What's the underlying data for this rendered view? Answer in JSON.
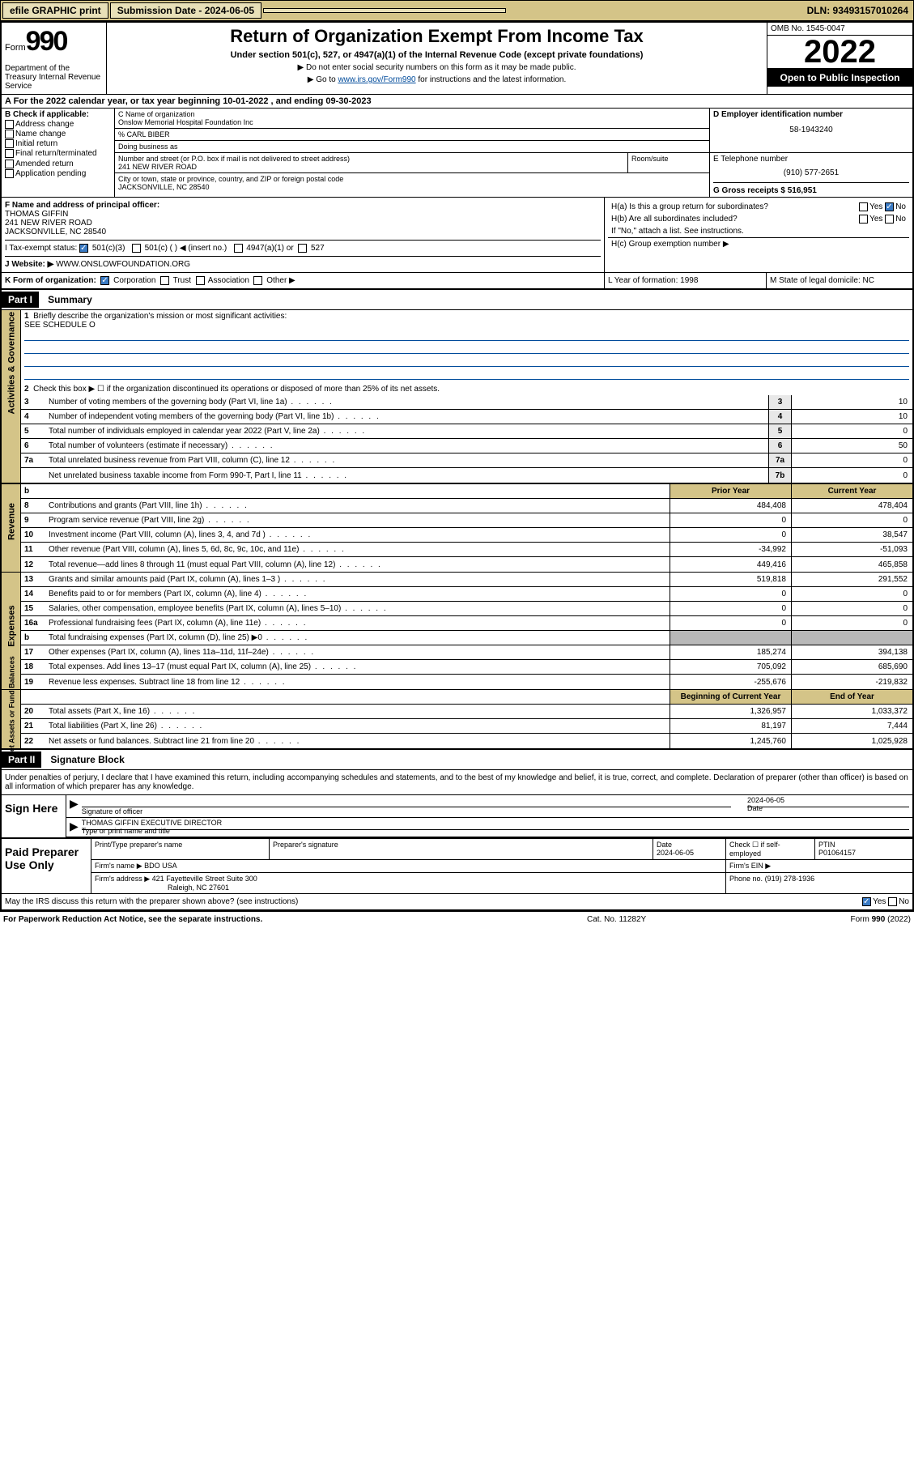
{
  "topbar": {
    "efile": "efile GRAPHIC print",
    "sub_label": "Submission Date - 2024-06-05",
    "dln": "DLN: 93493157010264"
  },
  "header": {
    "form_word": "Form",
    "form_num": "990",
    "dept": "Department of the Treasury Internal Revenue Service",
    "title": "Return of Organization Exempt From Income Tax",
    "sub": "Under section 501(c), 527, or 4947(a)(1) of the Internal Revenue Code (except private foundations)",
    "note1": "▶ Do not enter social security numbers on this form as it may be made public.",
    "note2_pre": "▶ Go to ",
    "note2_link": "www.irs.gov/Form990",
    "note2_post": " for instructions and the latest information.",
    "omb": "OMB No. 1545-0047",
    "year": "2022",
    "inspection": "Open to Public Inspection"
  },
  "rowA": "A For the 2022 calendar year, or tax year beginning 10-01-2022    , and ending 09-30-2023",
  "boxB": {
    "label": "B Check if applicable:",
    "items": [
      "Address change",
      "Name change",
      "Initial return",
      "Final return/terminated",
      "Amended return",
      "Application pending"
    ]
  },
  "boxC": {
    "name_label": "C Name of organization",
    "name": "Onslow Memorial Hospital Foundation Inc",
    "care_label": "% CARL BIBER",
    "dba_label": "Doing business as",
    "street_label": "Number and street (or P.O. box if mail is not delivered to street address)",
    "street": "241 NEW RIVER ROAD",
    "room_label": "Room/suite",
    "city_label": "City or town, state or province, country, and ZIP or foreign postal code",
    "city": "JACKSONVILLE, NC  28540"
  },
  "boxD": {
    "label": "D Employer identification number",
    "ein": "58-1943240"
  },
  "boxE": {
    "label": "E Telephone number",
    "phone": "(910) 577-2651"
  },
  "boxG": {
    "label": "G Gross receipts $ 516,951"
  },
  "boxF": {
    "label": "F Name and address of principal officer:",
    "name": "THOMAS GIFFIN",
    "street": "241 NEW RIVER ROAD",
    "city": "JACKSONVILLE, NC  28540"
  },
  "boxH": {
    "ha": "H(a)  Is this a group return for subordinates?",
    "hb": "H(b)  Are all subordinates included?",
    "hb_note": "If \"No,\" attach a list. See instructions.",
    "hc": "H(c)  Group exemption number ▶",
    "yes": "Yes",
    "no": "No"
  },
  "rowI": {
    "label": "I    Tax-exempt status:",
    "opts": [
      "501(c)(3)",
      "501(c) (  ) ◀ (insert no.)",
      "4947(a)(1) or",
      "527"
    ]
  },
  "rowJ": {
    "label": "J   Website: ▶",
    "url": " WWW.ONSLOWFOUNDATION.ORG"
  },
  "rowK": "K Form of organization:",
  "rowK_opts": [
    "Corporation",
    "Trust",
    "Association",
    "Other ▶"
  ],
  "rowL": "L Year of formation: 1998",
  "rowM": "M State of legal domicile: NC",
  "part1": {
    "header": "Part I",
    "title": "Summary",
    "l1": "Briefly describe the organization's mission or most significant activities:",
    "l1_text": "SEE SCHEDULE O",
    "l2": "Check this box ▶ ☐  if the organization discontinued its operations or disposed of more than 25% of its net assets.",
    "rows_single": [
      {
        "n": "3",
        "t": "Number of voting members of the governing body (Part VI, line 1a)",
        "box": "3",
        "v": "10"
      },
      {
        "n": "4",
        "t": "Number of independent voting members of the governing body (Part VI, line 1b)",
        "box": "4",
        "v": "10"
      },
      {
        "n": "5",
        "t": "Total number of individuals employed in calendar year 2022 (Part V, line 2a)",
        "box": "5",
        "v": "0"
      },
      {
        "n": "6",
        "t": "Total number of volunteers (estimate if necessary)",
        "box": "6",
        "v": "50"
      },
      {
        "n": "7a",
        "t": "Total unrelated business revenue from Part VIII, column (C), line 12",
        "box": "7a",
        "v": "0"
      },
      {
        "n": "",
        "t": "Net unrelated business taxable income from Form 990-T, Part I, line 11",
        "box": "7b",
        "v": "0"
      }
    ],
    "col_headers": {
      "prior": "Prior Year",
      "current": "Current Year"
    },
    "revenue": [
      {
        "n": "8",
        "t": "Contributions and grants (Part VIII, line 1h)",
        "p": "484,408",
        "c": "478,404"
      },
      {
        "n": "9",
        "t": "Program service revenue (Part VIII, line 2g)",
        "p": "0",
        "c": "0"
      },
      {
        "n": "10",
        "t": "Investment income (Part VIII, column (A), lines 3, 4, and 7d )",
        "p": "0",
        "c": "38,547"
      },
      {
        "n": "11",
        "t": "Other revenue (Part VIII, column (A), lines 5, 6d, 8c, 9c, 10c, and 11e)",
        "p": "-34,992",
        "c": "-51,093"
      },
      {
        "n": "12",
        "t": "Total revenue—add lines 8 through 11 (must equal Part VIII, column (A), line 12)",
        "p": "449,416",
        "c": "465,858"
      }
    ],
    "expenses": [
      {
        "n": "13",
        "t": "Grants and similar amounts paid (Part IX, column (A), lines 1–3 )",
        "p": "519,818",
        "c": "291,552"
      },
      {
        "n": "14",
        "t": "Benefits paid to or for members (Part IX, column (A), line 4)",
        "p": "0",
        "c": "0"
      },
      {
        "n": "15",
        "t": "Salaries, other compensation, employee benefits (Part IX, column (A), lines 5–10)",
        "p": "0",
        "c": "0"
      },
      {
        "n": "16a",
        "t": "Professional fundraising fees (Part IX, column (A), line 11e)",
        "p": "0",
        "c": "0"
      },
      {
        "n": "b",
        "t": "Total fundraising expenses (Part IX, column (D), line 25) ▶0",
        "p": "",
        "c": "",
        "shaded": true
      },
      {
        "n": "17",
        "t": "Other expenses (Part IX, column (A), lines 11a–11d, 11f–24e)",
        "p": "185,274",
        "c": "394,138"
      },
      {
        "n": "18",
        "t": "Total expenses. Add lines 13–17 (must equal Part IX, column (A), line 25)",
        "p": "705,092",
        "c": "685,690"
      },
      {
        "n": "19",
        "t": "Revenue less expenses. Subtract line 18 from line 12",
        "p": "-255,676",
        "c": "-219,832"
      }
    ],
    "balance_headers": {
      "begin": "Beginning of Current Year",
      "end": "End of Year"
    },
    "balances": [
      {
        "n": "20",
        "t": "Total assets (Part X, line 16)",
        "p": "1,326,957",
        "c": "1,033,372"
      },
      {
        "n": "21",
        "t": "Total liabilities (Part X, line 26)",
        "p": "81,197",
        "c": "7,444"
      },
      {
        "n": "22",
        "t": "Net assets or fund balances. Subtract line 21 from line 20",
        "p": "1,245,760",
        "c": "1,025,928"
      }
    ]
  },
  "side_labels": {
    "gov": "Activities & Governance",
    "rev": "Revenue",
    "exp": "Expenses",
    "net": "Net Assets or Fund Balances"
  },
  "part2": {
    "header": "Part II",
    "title": "Signature Block",
    "declaration": "Under penalties of perjury, I declare that I have examined this return, including accompanying schedules and statements, and to the best of my knowledge and belief, it is true, correct, and complete. Declaration of preparer (other than officer) is based on all information of which preparer has any knowledge.",
    "sign_here": "Sign Here",
    "sig_officer": "Signature of officer",
    "sig_date": "2024-06-05",
    "date_label": "Date",
    "officer_name": "THOMAS GIFFIN  EXECUTIVE DIRECTOR",
    "officer_label": "Type or print name and title",
    "paid": "Paid Preparer Use Only",
    "prep_name_label": "Print/Type preparer's name",
    "prep_sig_label": "Preparer's signature",
    "prep_date_label": "Date",
    "prep_date": "2024-06-05",
    "self_emp": "Check ☐  if self-employed",
    "ptin_label": "PTIN",
    "ptin": "P01064157",
    "firm_name_label": "Firm's name    ▶",
    "firm_name": "BDO USA",
    "firm_ein_label": "Firm's EIN ▶",
    "firm_addr_label": "Firm's address ▶",
    "firm_addr1": "421 Fayetteville Street Suite 300",
    "firm_addr2": "Raleigh, NC  27601",
    "firm_phone_label": "Phone no.",
    "firm_phone": "(919) 278-1936",
    "discuss": "May the IRS discuss this return with the preparer shown above? (see instructions)"
  },
  "footer": {
    "left": "For Paperwork Reduction Act Notice, see the separate instructions.",
    "mid": "Cat. No. 11282Y",
    "right": "Form 990 (2022)"
  }
}
